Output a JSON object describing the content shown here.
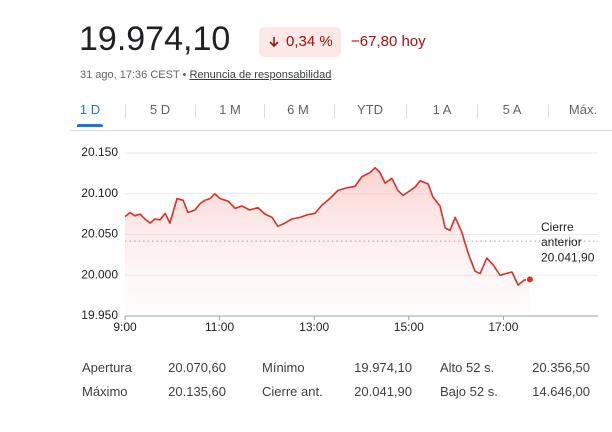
{
  "header": {
    "price": "19.974,10",
    "change_pct": "0,34 %",
    "change_abs": "−67,80 hoy",
    "timestamp": "31 ago, 17:36 CEST •",
    "disclaimer": "Renuncia de responsabilidad"
  },
  "tabs": [
    "1 D",
    "5 D",
    "1 M",
    "6 M",
    "YTD",
    "1 A",
    "5 A",
    "Máx."
  ],
  "chart_data": {
    "type": "line",
    "x": [
      9.0,
      9.11,
      9.21,
      9.32,
      9.42,
      9.53,
      9.63,
      9.74,
      9.85,
      9.95,
      10.1,
      10.23,
      10.33,
      10.48,
      10.59,
      10.69,
      10.8,
      10.9,
      11.01,
      11.18,
      11.33,
      11.47,
      11.64,
      11.81,
      11.96,
      12.11,
      12.23,
      12.38,
      12.53,
      12.7,
      12.85,
      13.02,
      13.16,
      13.33,
      13.5,
      13.67,
      13.86,
      14.01,
      14.18,
      14.29,
      14.39,
      14.5,
      14.64,
      14.77,
      14.88,
      15.03,
      15.13,
      15.24,
      15.41,
      15.51,
      15.66,
      15.77,
      15.87,
      15.98,
      16.12,
      16.25,
      16.4,
      16.51,
      16.65,
      16.78,
      16.93,
      17.05,
      17.18,
      17.31,
      17.44,
      17.56
    ],
    "series": [
      {
        "color": "#d93025",
        "values": [
          20072,
          20077,
          20073,
          20075,
          20069,
          20064,
          20069,
          20068,
          20076,
          20064,
          20094,
          20092,
          20077,
          20080,
          20088,
          20092,
          20094,
          20100,
          20094,
          20091,
          20082,
          20085,
          20080,
          20083,
          20075,
          20071,
          20060,
          20064,
          20069,
          20071,
          20074,
          20076,
          20086,
          20094,
          20104,
          20107,
          20109,
          20121,
          20126,
          20132,
          20126,
          20113,
          20119,
          20104,
          20098,
          20104,
          20108,
          20116,
          20112,
          20096,
          20085,
          20058,
          20055,
          20071,
          20053,
          20028,
          20005,
          20002,
          20021,
          20013,
          20000,
          20002,
          20004,
          19988,
          19994,
          19995
        ]
      }
    ],
    "xlim": [
      9,
      19
    ],
    "xticks": [
      {
        "value": 9,
        "label": "9:00"
      },
      {
        "value": 11,
        "label": "11:00"
      },
      {
        "value": 13,
        "label": "13:00"
      },
      {
        "value": 15,
        "label": "15:00"
      },
      {
        "value": 17,
        "label": "17:00"
      }
    ],
    "ylim": [
      19950,
      20150
    ],
    "yticks": [
      {
        "value": 19950,
        "label": "19.950"
      },
      {
        "value": 20000,
        "label": "20.000"
      },
      {
        "value": 20050,
        "label": "20.050"
      },
      {
        "value": 20100,
        "label": "20.100"
      },
      {
        "value": 20150,
        "label": "20.150"
      }
    ],
    "grid": true,
    "previous_close": {
      "label": "Cierre anterior",
      "value": 20041.9,
      "value_label": "20.041,90"
    }
  },
  "stats": [
    [
      [
        "Apertura",
        "20.070,60"
      ],
      [
        "Mínimo",
        "19.974,10"
      ],
      [
        "Alto 52 s.",
        "20.356,50"
      ]
    ],
    [
      [
        "Máximo",
        "20.135,60"
      ],
      [
        "Cierre ant.",
        "20.041,90"
      ],
      [
        "Bajo 52 s.",
        "14.646,00"
      ]
    ]
  ]
}
